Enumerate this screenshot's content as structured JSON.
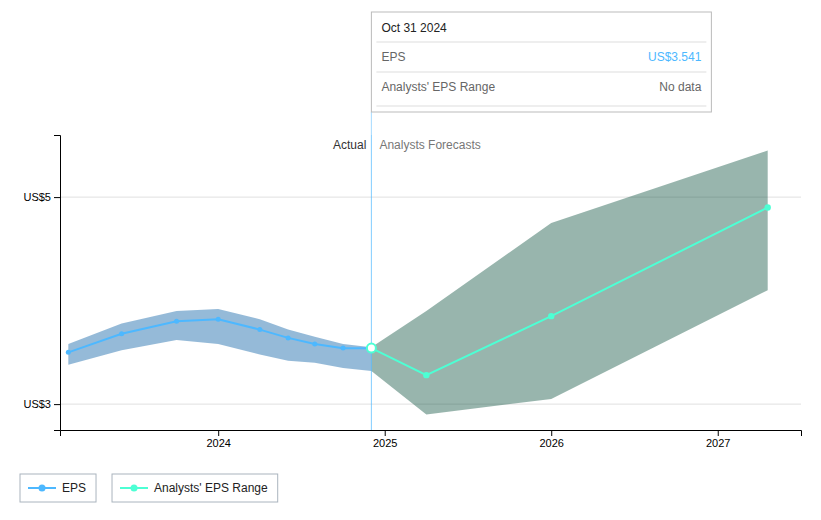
{
  "chart_data": {
    "type": "line",
    "xlim": [
      2023.05,
      2027.5
    ],
    "ylim": [
      2.75,
      5.6
    ],
    "xticks": [
      2024,
      2025,
      2026,
      2027
    ],
    "yticks": [
      {
        "value": 3.0,
        "label": "US$3"
      },
      {
        "value": 5.0,
        "label": "US$5"
      }
    ],
    "grid": true,
    "legend": "bottom",
    "series": [
      {
        "name": "EPS",
        "color": "#4db8ff",
        "band_color": "#1565a8",
        "x": [
          2023.1,
          2023.42,
          2023.75,
          2024.0,
          2024.25,
          2024.42,
          2024.58,
          2024.75,
          2024.92
        ],
        "values": [
          3.5,
          3.68,
          3.8,
          3.82,
          3.72,
          3.64,
          3.58,
          3.541,
          3.541
        ],
        "upper": [
          3.58,
          3.78,
          3.9,
          3.92,
          3.82,
          3.72,
          3.65,
          3.58,
          3.55
        ],
        "lower": [
          3.38,
          3.52,
          3.62,
          3.58,
          3.48,
          3.42,
          3.4,
          3.35,
          3.32
        ]
      },
      {
        "name": "Analysts' EPS Range",
        "color": "#4dffd4",
        "band_color": "#1a5c4a",
        "x": [
          2024.92,
          2025.25,
          2026.0,
          2027.3
        ],
        "values": [
          3.541,
          3.28,
          3.85,
          4.9
        ],
        "upper": [
          3.55,
          3.9,
          4.75,
          5.45
        ],
        "lower": [
          3.32,
          2.9,
          3.05,
          4.1
        ]
      }
    ],
    "divider": {
      "x": 2024.92,
      "labels": [
        "Actual",
        "Analysts Forecasts"
      ]
    },
    "tooltip": {
      "title": "Oct 31 2024",
      "rows": [
        {
          "label": "EPS",
          "value": "US$3.541"
        },
        {
          "label": "Analysts' EPS Range",
          "value": "No data"
        }
      ]
    }
  }
}
